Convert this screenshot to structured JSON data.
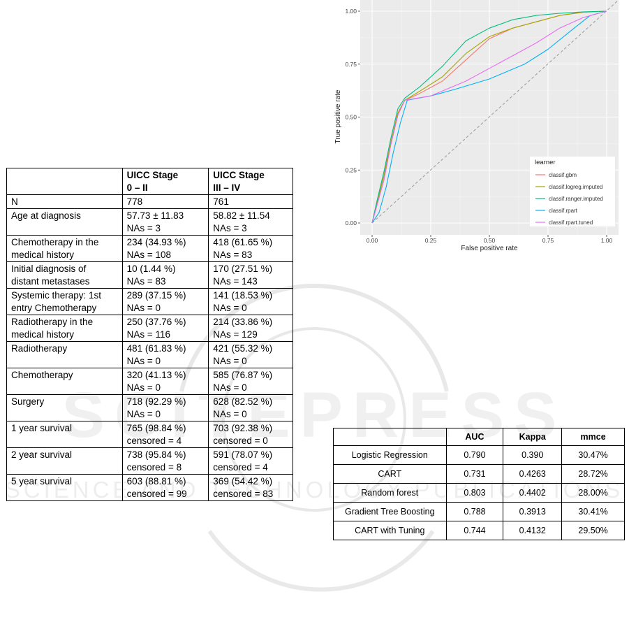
{
  "left_table": {
    "header": [
      "",
      "UICC Stage\n0 – II",
      "UICC Stage\nIII – IV"
    ],
    "rows": [
      {
        "label": "N",
        "a": "778",
        "b": "761"
      },
      {
        "label": "Age at diagnosis",
        "a": "57.73 ± 11.83\nNAs = 3",
        "b": "58.82 ± 11.54\nNAs = 3"
      },
      {
        "label": "Chemotherapy in the\nmedical history",
        "a": "234 (34.93 %)\nNAs = 108",
        "b": "418 (61.65 %)\nNAs = 83"
      },
      {
        "label": "Initial diagnosis of\ndistant metastases",
        "a": "10 (1.44 %)\nNAs = 83",
        "b": "170 (27.51 %)\nNAs = 143"
      },
      {
        "label": "Systemic therapy: 1st\nentry Chemotherapy",
        "a": "289 (37.15 %)\nNAs = 0",
        "b": "141 (18.53 %)\nNAs = 0"
      },
      {
        "label": "Radiotherapy in the\nmedical history",
        "a": "250 (37.76 %)\nNAs = 116",
        "b": "214 (33.86 %)\nNAs = 129"
      },
      {
        "label": "Radiotherapy",
        "a": "481 (61.83 %)\nNAs = 0",
        "b": "421 (55.32 %)\nNAs = 0"
      },
      {
        "label": "Chemotherapy",
        "a": "320 (41.13 %)\nNAs = 0",
        "b": "585 (76.87 %)\nNAs = 0"
      },
      {
        "label": "Surgery",
        "a": "718 (92.29 %)\nNAs = 0",
        "b": "628 (82.52 %)\nNAs = 0"
      },
      {
        "label": "1 year survival",
        "a": "765 (98.84 %)\ncensored = 4",
        "b": "703 (92.38 %)\ncensored = 0"
      },
      {
        "label": "2 year survival",
        "a": "738 (95.84 %)\ncensored = 8",
        "b": "591 (78.07 %)\ncensored = 4"
      },
      {
        "label": "5 year survival",
        "a": "603 (88.81 %)\ncensored = 99",
        "b": "369 (54.42 %)\ncensored = 83"
      }
    ]
  },
  "right_table": {
    "header": [
      "",
      "AUC",
      "Kappa",
      "mmce"
    ],
    "rows": [
      [
        "Logistic Regression",
        "0.790",
        "0.390",
        "30.47%"
      ],
      [
        "CART",
        "0.731",
        "0.4263",
        "28.72%"
      ],
      [
        "Random forest",
        "0.803",
        "0.4402",
        "28.00%"
      ],
      [
        "Gradient Tree Boosting",
        "0.788",
        "0.3913",
        "30.41%"
      ],
      [
        "CART with Tuning",
        "0.744",
        "0.4132",
        "29.50%"
      ]
    ]
  },
  "watermark": {
    "line1": "SCITEPRESS",
    "line2": "SCIENCE AND TECHNOLOGY PUBLICATIONS"
  },
  "chart_data": {
    "type": "line",
    "title": "",
    "xlabel": "False positive rate",
    "ylabel": "True positive rate",
    "xlim": [
      0,
      1
    ],
    "ylim": [
      0,
      1
    ],
    "xticks": [
      "0.00",
      "0.25",
      "0.50",
      "0.75",
      "1.00"
    ],
    "yticks": [
      "0.00",
      "0.25",
      "0.50",
      "0.75",
      "1.00"
    ],
    "grid": true,
    "background": "#ebebeb",
    "legend": {
      "title": "learner",
      "placement": "bottom-right"
    },
    "diagonal": {
      "style": "dashed",
      "color": "#999999"
    },
    "series": [
      {
        "name": "classif.gbm",
        "color": "#F8766D",
        "points": [
          [
            0,
            0
          ],
          [
            0.02,
            0.09
          ],
          [
            0.05,
            0.22
          ],
          [
            0.08,
            0.38
          ],
          [
            0.11,
            0.52
          ],
          [
            0.14,
            0.58
          ],
          [
            0.2,
            0.61
          ],
          [
            0.3,
            0.67
          ],
          [
            0.4,
            0.77
          ],
          [
            0.5,
            0.87
          ],
          [
            0.6,
            0.92
          ],
          [
            0.7,
            0.95
          ],
          [
            0.8,
            0.98
          ],
          [
            0.9,
            0.995
          ],
          [
            1,
            1
          ]
        ]
      },
      {
        "name": "classif.logreg.imputed",
        "color": "#A3A500",
        "points": [
          [
            0,
            0
          ],
          [
            0.02,
            0.09
          ],
          [
            0.05,
            0.22
          ],
          [
            0.08,
            0.38
          ],
          [
            0.11,
            0.52
          ],
          [
            0.14,
            0.58
          ],
          [
            0.2,
            0.62
          ],
          [
            0.3,
            0.69
          ],
          [
            0.4,
            0.8
          ],
          [
            0.5,
            0.88
          ],
          [
            0.6,
            0.92
          ],
          [
            0.7,
            0.95
          ],
          [
            0.8,
            0.98
          ],
          [
            0.9,
            0.995
          ],
          [
            1,
            1
          ]
        ]
      },
      {
        "name": "classif.ranger.imputed",
        "color": "#00BF7D",
        "points": [
          [
            0,
            0
          ],
          [
            0.02,
            0.1
          ],
          [
            0.05,
            0.24
          ],
          [
            0.08,
            0.4
          ],
          [
            0.11,
            0.54
          ],
          [
            0.14,
            0.59
          ],
          [
            0.2,
            0.64
          ],
          [
            0.3,
            0.74
          ],
          [
            0.4,
            0.86
          ],
          [
            0.5,
            0.92
          ],
          [
            0.6,
            0.96
          ],
          [
            0.7,
            0.98
          ],
          [
            0.8,
            0.99
          ],
          [
            0.9,
            0.997
          ],
          [
            1,
            1
          ]
        ]
      },
      {
        "name": "classif.rpart",
        "color": "#00B0F6",
        "points": [
          [
            0,
            0
          ],
          [
            0.03,
            0.05
          ],
          [
            0.06,
            0.17
          ],
          [
            0.09,
            0.33
          ],
          [
            0.12,
            0.47
          ],
          [
            0.15,
            0.58
          ],
          [
            0.25,
            0.6
          ],
          [
            0.35,
            0.63
          ],
          [
            0.5,
            0.68
          ],
          [
            0.65,
            0.75
          ],
          [
            0.75,
            0.82
          ],
          [
            0.85,
            0.91
          ],
          [
            0.93,
            0.98
          ],
          [
            1,
            1
          ]
        ]
      },
      {
        "name": "classif.rpart.tuned",
        "color": "#E76BF3",
        "points": [
          [
            0,
            0
          ],
          [
            0.02,
            0.08
          ],
          [
            0.05,
            0.2
          ],
          [
            0.08,
            0.37
          ],
          [
            0.11,
            0.51
          ],
          [
            0.14,
            0.58
          ],
          [
            0.25,
            0.6
          ],
          [
            0.4,
            0.67
          ],
          [
            0.5,
            0.73
          ],
          [
            0.6,
            0.79
          ],
          [
            0.7,
            0.85
          ],
          [
            0.8,
            0.92
          ],
          [
            0.9,
            0.97
          ],
          [
            1,
            1
          ]
        ]
      }
    ]
  }
}
